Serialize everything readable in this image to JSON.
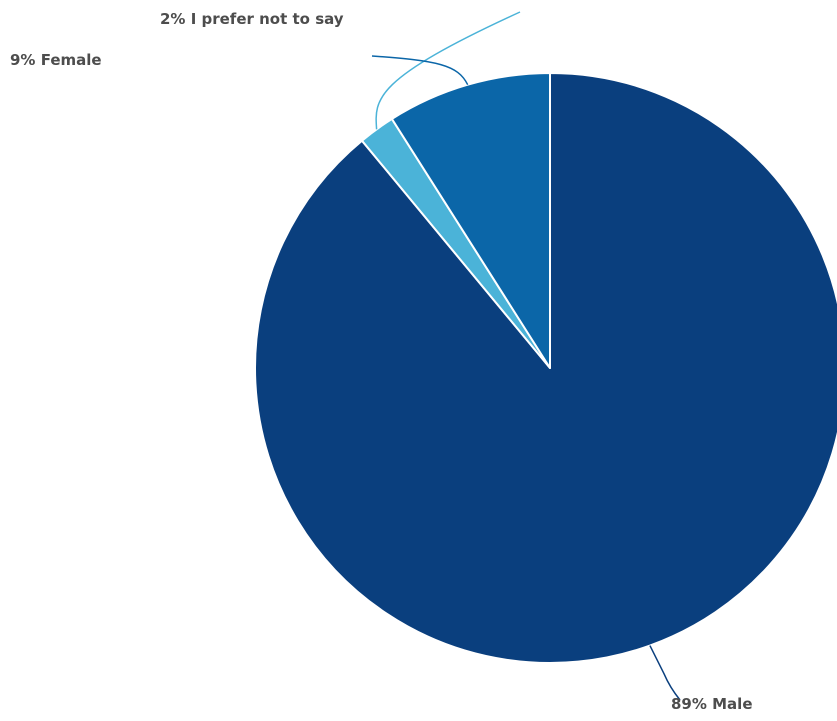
{
  "chart_data": {
    "type": "pie",
    "title": "",
    "slices": [
      {
        "label": "Male",
        "value": 89,
        "display": "89% Male",
        "color": "#0a3f7e"
      },
      {
        "label": "I prefer not to say",
        "value": 2,
        "display": "2% I prefer not to say",
        "color": "#4bb3d8"
      },
      {
        "label": "Female",
        "value": 9,
        "display": "9% Female",
        "color": "#0b66a8"
      }
    ],
    "start_angle": "12 o'clock",
    "direction": "clockwise",
    "legend": "none",
    "slice_border_color": "#ffffff",
    "leader_line_colors": [
      "#0a3f7e",
      "#4bb3d8",
      "#0b66a8"
    ]
  }
}
